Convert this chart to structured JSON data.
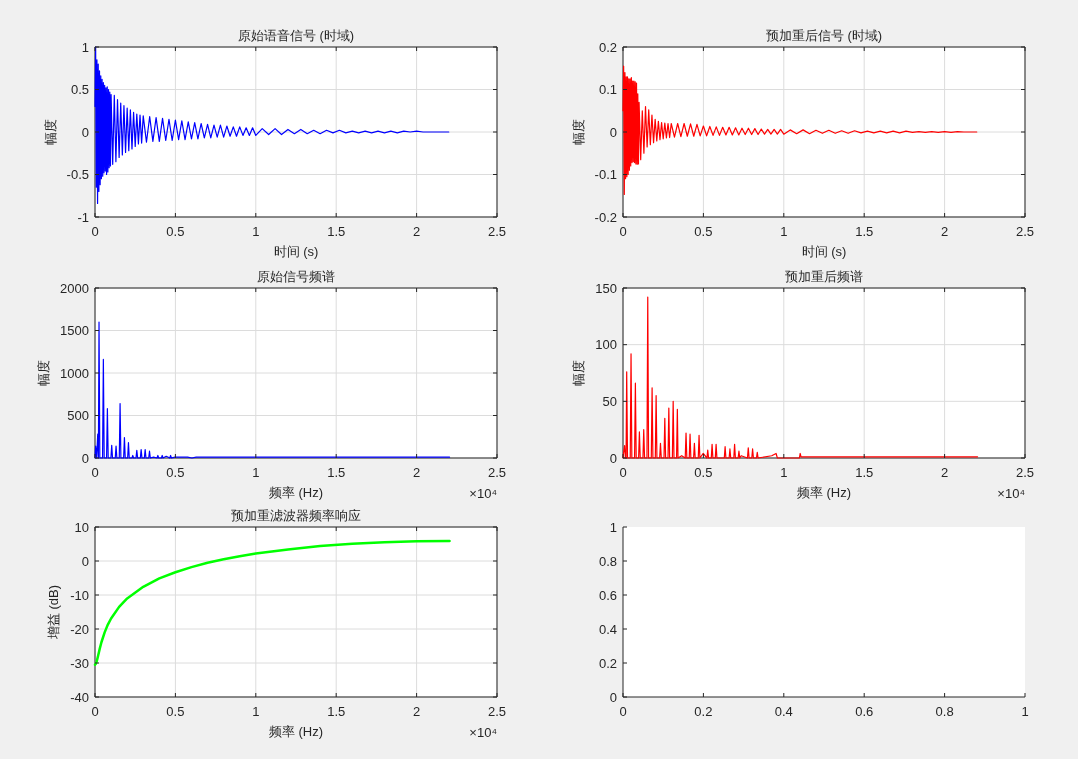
{
  "chart_data": [
    {
      "type": "line",
      "title": "原始语音信号 (时域)",
      "xlabel": "时间 (s)",
      "ylabel": "幅度",
      "grid": true,
      "xlim": [
        0,
        2.5
      ],
      "ylim": [
        -1,
        1
      ],
      "xticks": [
        0,
        0.5,
        1,
        1.5,
        2,
        2.5
      ],
      "yticks": [
        -1,
        -0.5,
        0,
        0.5,
        1
      ],
      "x": [
        0,
        0.004,
        0.008,
        0.012,
        0.016,
        0.02,
        0.024,
        0.028,
        0.032,
        0.036,
        0.04,
        0.044,
        0.048,
        0.052,
        0.056,
        0.06,
        0.064,
        0.068,
        0.072,
        0.076,
        0.08,
        0.084,
        0.088,
        0.092,
        0.096,
        0.1,
        0.11,
        0.12,
        0.13,
        0.14,
        0.15,
        0.16,
        0.17,
        0.18,
        0.19,
        0.2,
        0.21,
        0.22,
        0.23,
        0.24,
        0.25,
        0.26,
        0.27,
        0.28,
        0.29,
        0.3,
        0.32,
        0.34,
        0.36,
        0.38,
        0.4,
        0.42,
        0.44,
        0.46,
        0.48,
        0.5,
        0.52,
        0.54,
        0.56,
        0.58,
        0.6,
        0.62,
        0.64,
        0.66,
        0.68,
        0.7,
        0.72,
        0.74,
        0.76,
        0.78,
        0.8,
        0.82,
        0.84,
        0.86,
        0.88,
        0.9,
        0.92,
        0.94,
        0.96,
        0.98,
        1,
        1.04,
        1.08,
        1.12,
        1.16,
        1.2,
        1.24,
        1.28,
        1.32,
        1.36,
        1.4,
        1.44,
        1.48,
        1.52,
        1.56,
        1.6,
        1.64,
        1.68,
        1.72,
        1.76,
        1.8,
        1.84,
        1.88,
        1.92,
        1.96,
        2,
        2.04,
        2.08,
        2.12,
        2.16,
        2.2
      ],
      "series": [
        {
          "color": "#0000ff",
          "values": [
            0.3,
            1,
            -0.65,
            0.85,
            -0.84,
            0.8,
            -0.7,
            0.72,
            -0.62,
            0.66,
            -0.55,
            0.62,
            -0.52,
            0.58,
            -0.48,
            0.55,
            -0.46,
            0.52,
            -0.5,
            0.53,
            -0.47,
            0.5,
            -0.42,
            0.47,
            -0.4,
            0.44,
            -0.38,
            0.43,
            -0.35,
            0.38,
            -0.3,
            0.34,
            -0.27,
            0.31,
            -0.24,
            0.28,
            -0.22,
            0.26,
            -0.2,
            0.23,
            -0.17,
            0.21,
            -0.14,
            0.2,
            -0.13,
            0.19,
            -0.12,
            0.18,
            -0.11,
            0.17,
            -0.11,
            0.16,
            -0.1,
            0.15,
            -0.1,
            0.14,
            -0.09,
            0.13,
            -0.09,
            0.12,
            -0.08,
            0.11,
            -0.08,
            0.1,
            -0.07,
            0.09,
            -0.07,
            0.08,
            -0.06,
            0.08,
            -0.06,
            0.07,
            -0.05,
            0.06,
            -0.05,
            0.06,
            -0.04,
            0.05,
            -0.04,
            0.05,
            -0.04,
            0.04,
            -0.03,
            0.04,
            -0.03,
            0.03,
            -0.02,
            0.03,
            -0.02,
            0.02,
            -0.02,
            0.02,
            -0.01,
            0.02,
            -0.01,
            0.01,
            -0.01,
            0.01,
            -0.01,
            0.01,
            -0.01,
            0.01,
            -0.01,
            0.01,
            0,
            0.01,
            0,
            0,
            0,
            0,
            0
          ]
        }
      ]
    },
    {
      "type": "line",
      "title": "预加重后信号 (时域)",
      "xlabel": "时间 (s)",
      "ylabel": "幅度",
      "grid": true,
      "xlim": [
        0,
        2.5
      ],
      "ylim": [
        -0.2,
        0.2
      ],
      "xticks": [
        0,
        0.5,
        1,
        1.5,
        2,
        2.5
      ],
      "yticks": [
        -0.2,
        -0.1,
        0,
        0.1,
        0.2
      ],
      "x": [
        0,
        0.004,
        0.008,
        0.012,
        0.016,
        0.02,
        0.024,
        0.028,
        0.032,
        0.036,
        0.04,
        0.044,
        0.048,
        0.052,
        0.056,
        0.06,
        0.064,
        0.068,
        0.072,
        0.076,
        0.08,
        0.084,
        0.088,
        0.092,
        0.096,
        0.1,
        0.11,
        0.12,
        0.13,
        0.14,
        0.15,
        0.16,
        0.17,
        0.18,
        0.19,
        0.2,
        0.21,
        0.22,
        0.23,
        0.24,
        0.25,
        0.26,
        0.27,
        0.28,
        0.29,
        0.3,
        0.32,
        0.34,
        0.36,
        0.38,
        0.4,
        0.42,
        0.44,
        0.46,
        0.48,
        0.5,
        0.52,
        0.54,
        0.56,
        0.58,
        0.6,
        0.62,
        0.64,
        0.66,
        0.68,
        0.7,
        0.72,
        0.74,
        0.76,
        0.78,
        0.8,
        0.82,
        0.84,
        0.86,
        0.88,
        0.9,
        0.92,
        0.94,
        0.96,
        0.98,
        1,
        1.04,
        1.08,
        1.12,
        1.16,
        1.2,
        1.24,
        1.28,
        1.32,
        1.36,
        1.4,
        1.44,
        1.48,
        1.52,
        1.56,
        1.6,
        1.64,
        1.68,
        1.72,
        1.76,
        1.8,
        1.84,
        1.88,
        1.92,
        1.96,
        2,
        2.04,
        2.08,
        2.12,
        2.16,
        2.2
      ],
      "series": [
        {
          "color": "#ff0000",
          "values": [
            0.05,
            0.155,
            -0.147,
            0.14,
            -0.11,
            0.13,
            -0.105,
            0.13,
            -0.1,
            0.125,
            -0.09,
            0.125,
            -0.08,
            0.128,
            -0.072,
            0.12,
            -0.07,
            0.12,
            -0.072,
            0.118,
            -0.075,
            0.115,
            -0.076,
            0.09,
            -0.075,
            0.07,
            -0.065,
            0.05,
            -0.05,
            0.06,
            -0.035,
            0.052,
            -0.03,
            0.04,
            -0.025,
            0.03,
            -0.021,
            0.025,
            -0.018,
            0.022,
            -0.016,
            0.021,
            -0.014,
            0.02,
            -0.013,
            0.02,
            -0.012,
            0.02,
            -0.011,
            0.02,
            -0.01,
            0.019,
            -0.01,
            0.018,
            -0.009,
            0.014,
            -0.009,
            0.013,
            -0.008,
            0.012,
            -0.008,
            0.011,
            -0.007,
            0.011,
            -0.007,
            0.01,
            -0.007,
            0.009,
            -0.006,
            0.009,
            -0.006,
            0.008,
            -0.006,
            0.007,
            -0.005,
            0.006,
            -0.005,
            0.006,
            -0.005,
            0.006,
            -0.005,
            0.005,
            -0.004,
            0.005,
            -0.004,
            0.004,
            -0.003,
            0.004,
            -0.003,
            0.003,
            -0.003,
            0.003,
            -0.002,
            0.002,
            -0.002,
            0.002,
            -0.002,
            0.002,
            -0.002,
            0.002,
            -0.001,
            0.001,
            -0.001,
            0.001,
            -0.001,
            0.001,
            -0.001,
            0.001,
            0,
            0,
            0
          ]
        }
      ]
    },
    {
      "type": "line",
      "title": "原始信号频谱",
      "xlabel": "频率 (Hz)",
      "ylabel": "幅度",
      "grid": true,
      "xlim": [
        0,
        2.5
      ],
      "ylim": [
        0,
        2000
      ],
      "xticks": [
        0,
        0.5,
        1,
        1.5,
        2,
        2.5
      ],
      "yticks": [
        0,
        500,
        1000,
        1500,
        2000
      ],
      "annotations": [
        "×10⁴"
      ],
      "x": [
        0,
        0.004,
        0.01,
        0.017,
        0.021,
        0.025,
        0.03,
        0.047,
        0.052,
        0.057,
        0.072,
        0.077,
        0.082,
        0.099,
        0.104,
        0.109,
        0.126,
        0.131,
        0.136,
        0.151,
        0.156,
        0.161,
        0.178,
        0.183,
        0.188,
        0.203,
        0.208,
        0.213,
        0.23,
        0.235,
        0.24,
        0.255,
        0.26,
        0.265,
        0.282,
        0.287,
        0.292,
        0.307,
        0.312,
        0.317,
        0.334,
        0.339,
        0.344,
        0.364,
        0.386,
        0.391,
        0.396,
        0.413,
        0.418,
        0.423,
        0.443,
        0.465,
        0.47,
        0.475,
        0.497,
        0.524,
        0.55,
        0.576,
        0.603,
        0.629,
        0.655,
        2.205
      ],
      "series": [
        {
          "color": "#0000ff",
          "values": [
            0,
            140,
            0,
            280,
            0,
            1600,
            0,
            0,
            1160,
            0,
            0,
            580,
            0,
            0,
            150,
            0,
            0,
            140,
            0,
            0,
            640,
            0,
            0,
            240,
            0,
            0,
            180,
            0,
            0,
            30,
            0,
            0,
            90,
            0,
            0,
            100,
            0,
            0,
            100,
            0,
            0,
            80,
            0,
            10,
            0,
            30,
            0,
            0,
            30,
            0,
            20,
            0,
            30,
            0,
            10,
            10,
            10,
            10,
            0,
            10,
            10,
            10
          ]
        }
      ]
    },
    {
      "type": "line",
      "title": "预加重后频谱",
      "xlabel": "频率 (Hz)",
      "ylabel": "幅度",
      "grid": true,
      "xlim": [
        0,
        2.5
      ],
      "ylim": [
        0,
        150
      ],
      "xticks": [
        0,
        0.5,
        1,
        1.5,
        2,
        2.5
      ],
      "yticks": [
        0,
        50,
        100,
        150
      ],
      "annotations": [
        "×10⁴"
      ],
      "x": [
        0,
        0.004,
        0.01,
        0.015,
        0.019,
        0.023,
        0.028,
        0.045,
        0.05,
        0.055,
        0.072,
        0.077,
        0.082,
        0.097,
        0.102,
        0.107,
        0.124,
        0.129,
        0.134,
        0.149,
        0.154,
        0.159,
        0.176,
        0.181,
        0.186,
        0.201,
        0.206,
        0.211,
        0.228,
        0.233,
        0.238,
        0.255,
        0.26,
        0.265,
        0.28,
        0.285,
        0.29,
        0.307,
        0.312,
        0.317,
        0.333,
        0.338,
        0.342,
        0.365,
        0.387,
        0.392,
        0.397,
        0.412,
        0.417,
        0.422,
        0.439,
        0.444,
        0.449,
        0.468,
        0.473,
        0.478,
        0.499,
        0.522,
        0.527,
        0.532,
        0.549,
        0.554,
        0.559,
        0.574,
        0.579,
        0.584,
        0.63,
        0.635,
        0.64,
        0.66,
        0.665,
        0.67,
        0.689,
        0.694,
        0.699,
        0.716,
        0.721,
        0.726,
        0.735,
        0.774,
        0.779,
        0.784,
        0.801,
        0.806,
        0.811,
        0.83,
        0.835,
        0.84,
        0.925,
        0.952,
        0.96,
        1.097,
        1.102,
        1.107,
        2.205
      ],
      "series": [
        {
          "color": "#ff0000",
          "values": [
            0,
            5,
            11,
            0,
            0,
            76,
            0,
            0,
            92,
            0,
            0,
            66,
            0,
            0,
            23,
            0,
            0,
            25,
            0,
            0,
            142,
            0,
            0,
            62,
            0,
            0,
            55,
            0,
            0,
            13,
            0,
            0,
            35,
            0,
            0,
            44,
            0,
            0,
            50,
            0,
            0,
            43,
            0,
            2,
            0,
            22,
            0,
            0,
            21,
            0,
            0,
            13,
            0,
            0,
            20,
            0,
            4,
            0,
            7,
            0,
            0,
            12,
            0,
            0,
            12,
            0,
            0,
            10,
            0,
            0,
            8,
            0,
            0,
            12,
            0,
            0,
            6,
            0,
            2,
            0,
            9,
            0,
            0,
            8,
            0,
            0,
            5,
            0,
            2,
            4,
            0,
            0,
            4,
            1,
            1
          ]
        }
      ]
    },
    {
      "type": "line",
      "title": "预加重滤波器频率响应",
      "xlabel": "频率 (Hz)",
      "ylabel": "增益 (dB)",
      "grid": true,
      "xlim": [
        0,
        2.5
      ],
      "ylim": [
        -40,
        10
      ],
      "xticks": [
        0,
        0.5,
        1,
        1.5,
        2,
        2.5
      ],
      "yticks": [
        -40,
        -30,
        -20,
        -10,
        0,
        10
      ],
      "annotations": [
        "×10⁴"
      ],
      "x": [
        0,
        0.005,
        0.01,
        0.015,
        0.02,
        0.03,
        0.04,
        0.06,
        0.08,
        0.1,
        0.15,
        0.2,
        0.3,
        0.4,
        0.5,
        0.6,
        0.7,
        0.8,
        0.9,
        1,
        1.2,
        1.4,
        1.6,
        1.8,
        2,
        2.205
      ],
      "series": [
        {
          "color": "#00ff00",
          "values": [
            -30.5,
            -30.2,
            -29.6,
            -28.7,
            -27.7,
            -25.7,
            -23.9,
            -21,
            -18.7,
            -16.9,
            -13.5,
            -11,
            -7.6,
            -5.1,
            -3.3,
            -1.8,
            -0.5,
            0.5,
            1.4,
            2.2,
            3.4,
            4.4,
            5.1,
            5.5,
            5.8,
            5.9
          ]
        }
      ]
    },
    {
      "type": "line",
      "xlim": [
        0,
        1
      ],
      "ylim": [
        0,
        1
      ],
      "xticks": [
        0,
        0.2,
        0.4,
        0.6,
        0.8,
        1
      ],
      "yticks": [
        0,
        0.2,
        0.4,
        0.6,
        0.8,
        1
      ]
    }
  ]
}
